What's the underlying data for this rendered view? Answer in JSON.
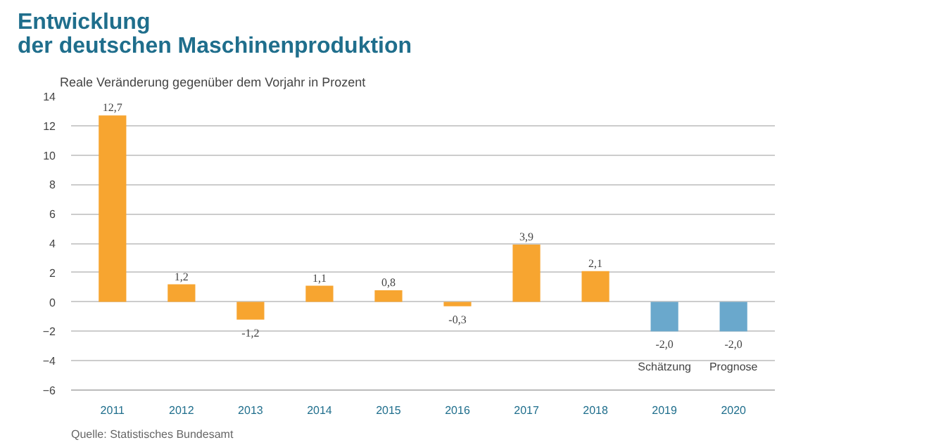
{
  "chart_data": {
    "type": "bar",
    "title": "Entwicklung\nder deutschen Maschinenproduktion",
    "ylabel": "Reale Veränderung gegenüber dem Vorjahr in Prozent",
    "categories": [
      "2011",
      "2012",
      "2013",
      "2014",
      "2015",
      "2016",
      "2017",
      "2018",
      "2019",
      "2020"
    ],
    "values": [
      12.7,
      1.2,
      -1.2,
      1.1,
      0.8,
      -0.3,
      3.9,
      2.1,
      -2.0,
      -2.0
    ],
    "colors": [
      "#f7a530",
      "#f7a530",
      "#f7a530",
      "#f7a530",
      "#f7a530",
      "#f7a530",
      "#f7a530",
      "#f7a530",
      "#6aa8cc",
      "#6aa8cc"
    ],
    "value_labels": [
      "12,7",
      "1,2",
      "-1,2",
      "1,1",
      "0,8",
      "-0,3",
      "3,9",
      "2,1",
      "-2,0",
      "-2,0"
    ],
    "ylim": [
      -6,
      14
    ],
    "yticks": [
      -6,
      -4,
      -2,
      0,
      2,
      4,
      6,
      8,
      10,
      12,
      14
    ],
    "grid": "y",
    "annotations": [
      "Schätzung",
      "Prognose",
      "Quelle: Statistisches Bundesamt"
    ]
  }
}
